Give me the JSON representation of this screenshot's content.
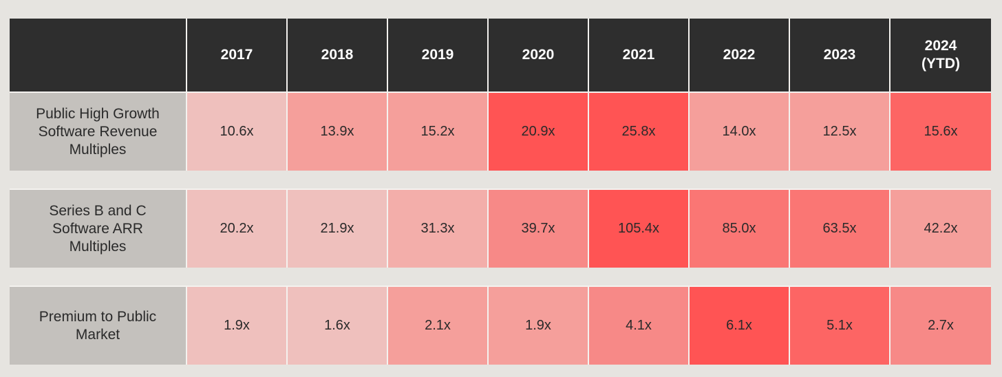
{
  "chart_data": {
    "type": "table",
    "columns": [
      "2017",
      "2018",
      "2019",
      "2020",
      "2021",
      "2022",
      "2023",
      "2024\n(YTD)"
    ],
    "rows": [
      {
        "label": "Public High Growth Software Revenue Multiples",
        "values": [
          "10.6x",
          "13.9x",
          "15.2x",
          "20.9x",
          "25.8x",
          "14.0x",
          "12.5x",
          "15.6x"
        ],
        "colors": [
          "#efc0bd",
          "#f59f9b",
          "#f59f9b",
          "#ff5454",
          "#ff5454",
          "#f59f9b",
          "#f59f9b",
          "#fd6564"
        ]
      },
      {
        "label": "Series B and C Software ARR Multiples",
        "values": [
          "20.2x",
          "21.9x",
          "31.3x",
          "39.7x",
          "105.4x",
          "85.0x",
          "63.5x",
          "42.2x"
        ],
        "colors": [
          "#efc0bd",
          "#efc0bd",
          "#f3aeaa",
          "#f78987",
          "#ff5454",
          "#fa7674",
          "#fa7674",
          "#f59f9b"
        ]
      },
      {
        "label": "Premium to Public Market",
        "values": [
          "1.9x",
          "1.6x",
          "2.1x",
          "1.9x",
          "4.1x",
          "6.1x",
          "5.1x",
          "2.7x"
        ],
        "colors": [
          "#efc0bd",
          "#efc0bd",
          "#f59f9b",
          "#f59f9b",
          "#f78987",
          "#ff5454",
          "#fd6564",
          "#f78987"
        ]
      }
    ]
  }
}
